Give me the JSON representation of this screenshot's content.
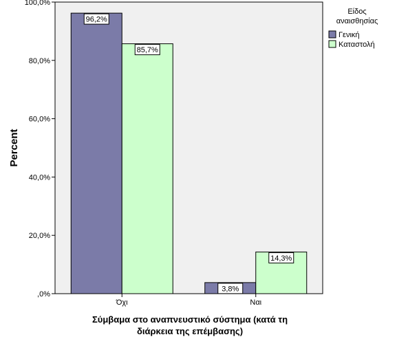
{
  "chart_data": {
    "type": "bar",
    "categories": [
      "Όχι",
      "Ναι"
    ],
    "series": [
      {
        "name": "Γενική",
        "values": [
          96.2,
          3.8
        ],
        "labels": [
          "96,2%",
          "3,8%"
        ],
        "color": "#7b7ba8"
      },
      {
        "name": "Καταστολή",
        "values": [
          85.7,
          14.3
        ],
        "labels": [
          "85,7%",
          "14,3%"
        ],
        "color": "#ccffcc"
      }
    ],
    "xlabel_lines": [
      "Σύμβαμα στο αναπνευστικό σύστημα (κατά τη",
      "διάρκεια της επέμβασης)"
    ],
    "ylabel": "Percent",
    "ylim": [
      0,
      100
    ],
    "yticks": [
      0,
      20,
      40,
      60,
      80,
      100
    ],
    "ytick_labels": [
      ",0%",
      "20,0%",
      "40,0%",
      "60,0%",
      "80,0%",
      "100,0%"
    ],
    "legend": {
      "title_lines": [
        "Είδος",
        "αναισθησίας"
      ],
      "position": "top-right"
    },
    "grid": false,
    "plot_background": "#f0f0f0"
  }
}
